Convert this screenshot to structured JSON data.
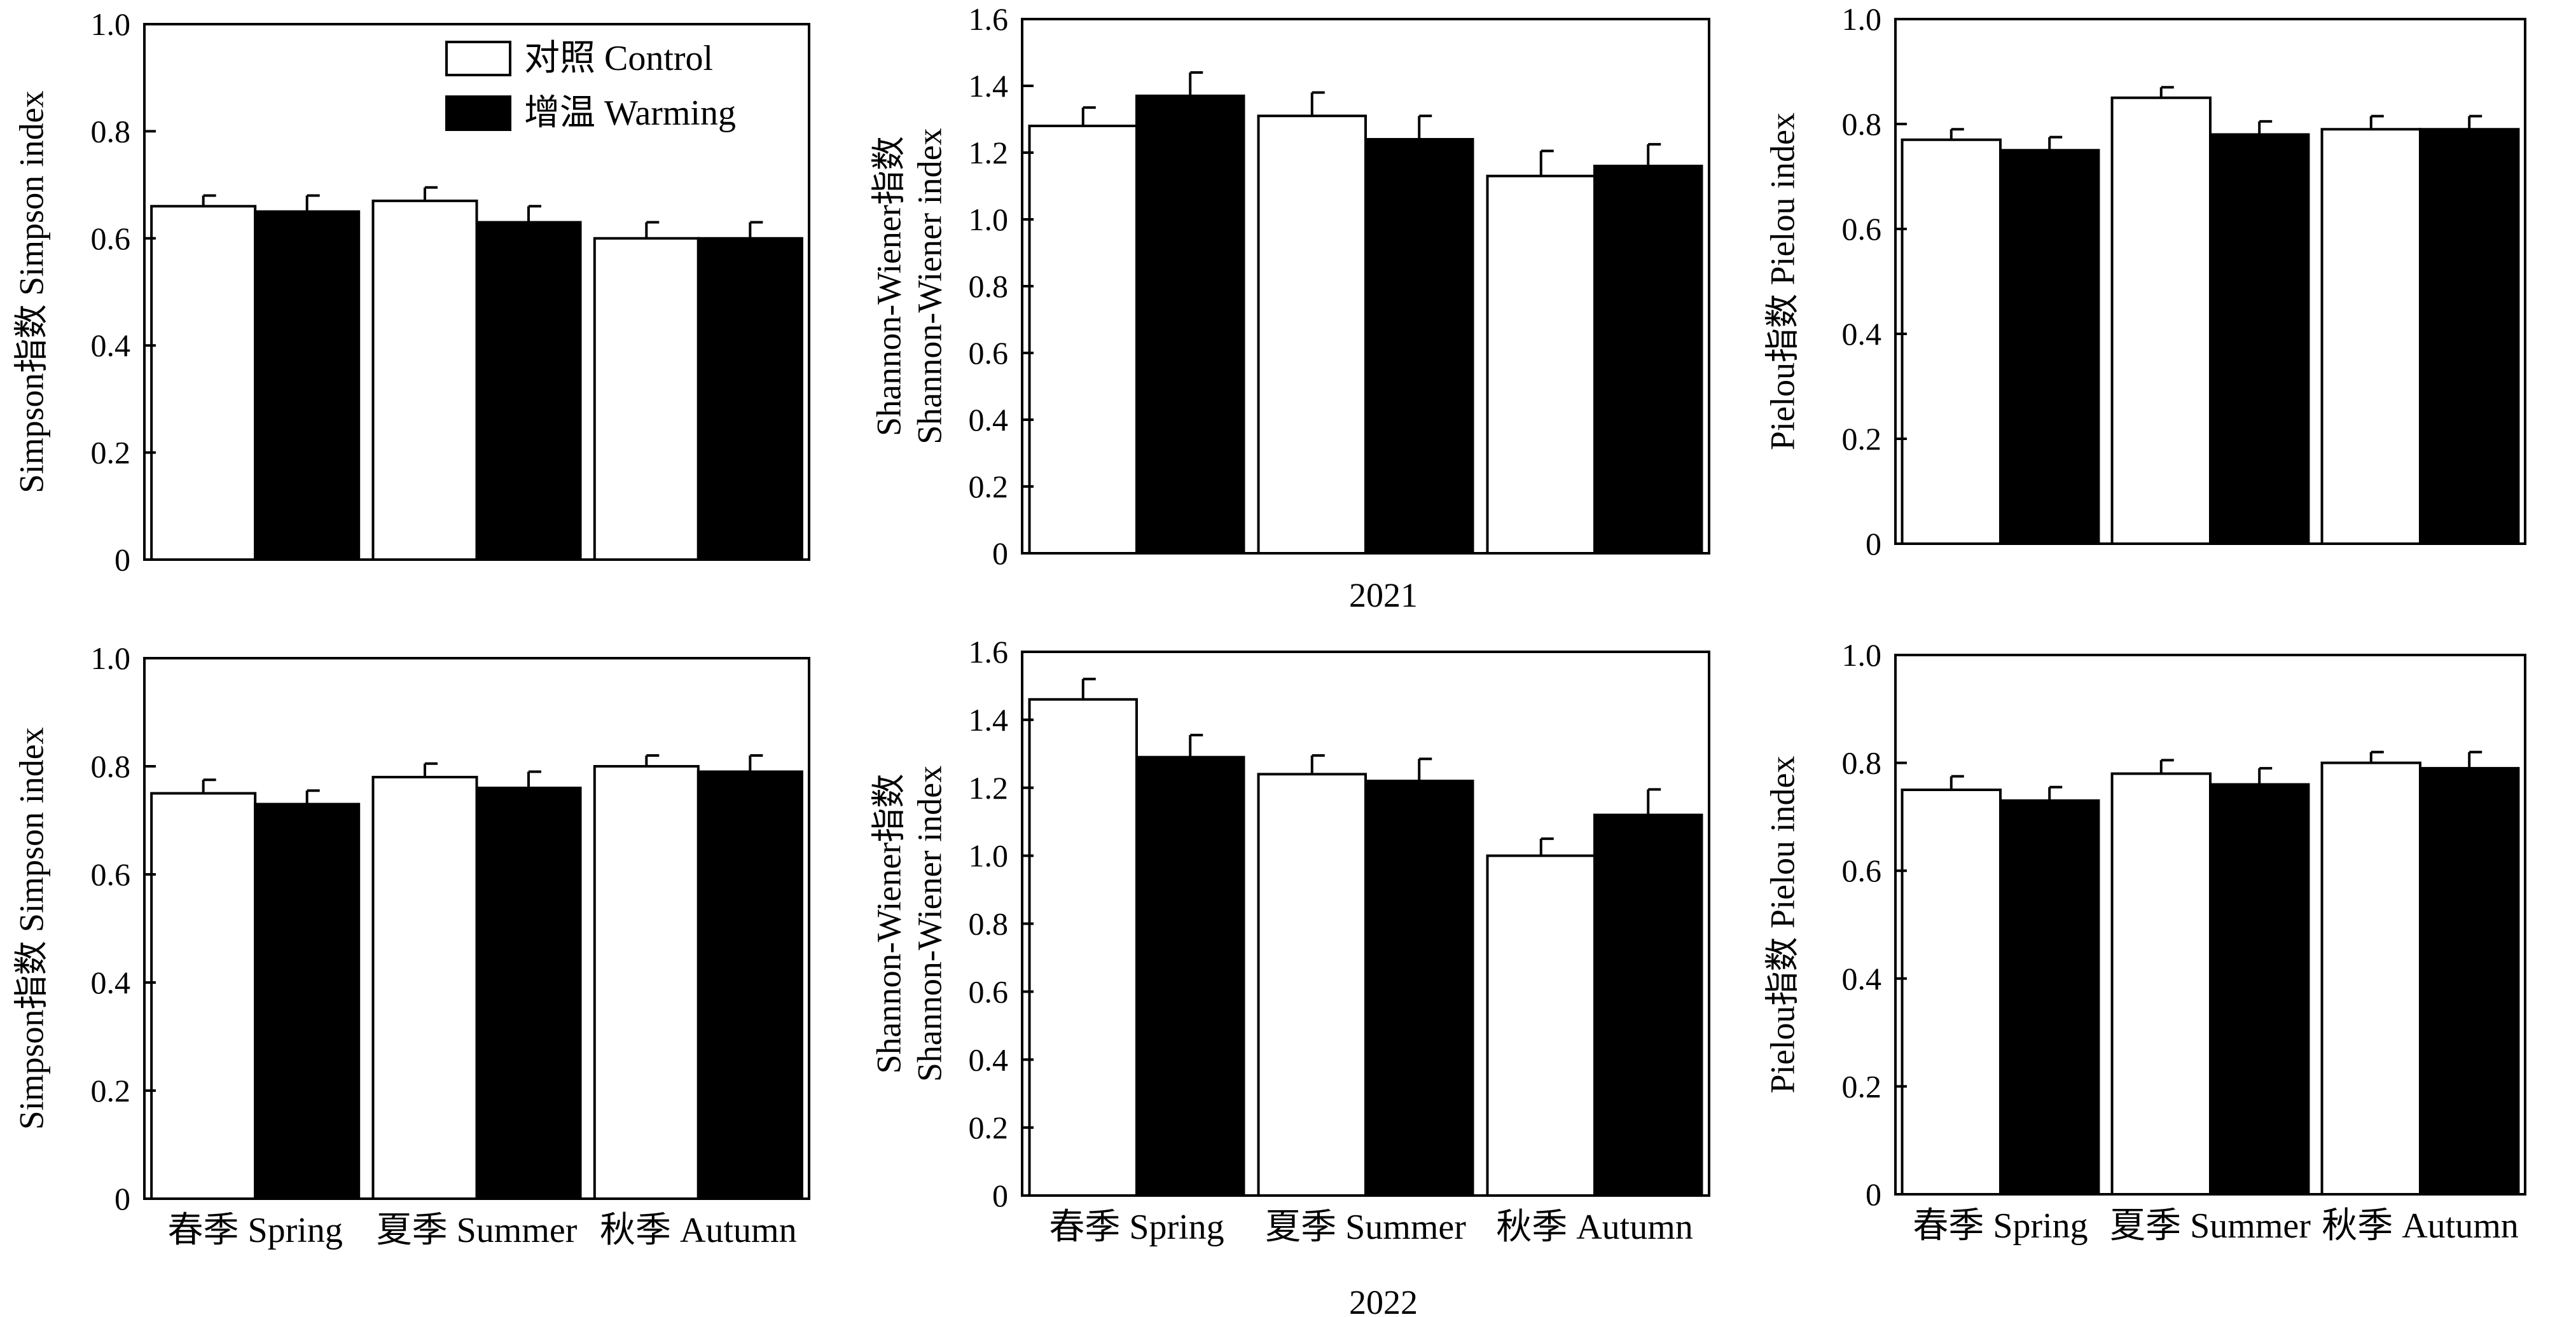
{
  "legend": [
    {
      "label": "对照 Control",
      "color": "#ffffff"
    },
    {
      "label": "增温 Warming",
      "color": "#000000"
    }
  ],
  "year_labels": [
    "2021",
    "2022"
  ],
  "chart_data": [
    {
      "type": "bar",
      "year": "2021",
      "categories": [
        "",
        "",
        ""
      ],
      "ylabel": [
        "Simpson指数 Simpson index"
      ],
      "ylim": [
        0,
        1.0
      ],
      "yticks": [
        "0",
        "0.2",
        "0.4",
        "0.6",
        "0.8",
        "1.0"
      ],
      "series": [
        {
          "name": "对照 Control",
          "values": [
            0.66,
            0.67,
            0.6
          ],
          "errors": [
            0.02,
            0.025,
            0.03
          ]
        },
        {
          "name": "增温 Warming",
          "values": [
            0.65,
            0.63,
            0.6
          ],
          "errors": [
            0.03,
            0.03,
            0.03
          ]
        }
      ]
    },
    {
      "type": "bar",
      "year": "2021",
      "categories": [
        "",
        "",
        ""
      ],
      "ylabel": [
        "Shannon-Wiener指数",
        "Shannon-Wiener index"
      ],
      "ylim": [
        0,
        1.6
      ],
      "yticks": [
        "0",
        "0.2",
        "0.4",
        "0.6",
        "0.8",
        "1.0",
        "1.2",
        "1.4",
        "1.6"
      ],
      "series": [
        {
          "name": "对照 Control",
          "values": [
            1.28,
            1.31,
            1.13
          ],
          "errors": [
            0.055,
            0.07,
            0.075
          ]
        },
        {
          "name": "增温 Warming",
          "values": [
            1.37,
            1.24,
            1.16
          ],
          "errors": [
            0.07,
            0.07,
            0.065
          ]
        }
      ]
    },
    {
      "type": "bar",
      "year": "2021",
      "categories": [
        "",
        "",
        ""
      ],
      "ylabel": [
        "Pielou指数 Pielou index"
      ],
      "ylim": [
        0,
        1.0
      ],
      "yticks": [
        "0",
        "0.2",
        "0.4",
        "0.6",
        "0.8",
        "1.0"
      ],
      "series": [
        {
          "name": "对照 Control",
          "values": [
            0.77,
            0.85,
            0.79
          ],
          "errors": [
            0.02,
            0.02,
            0.025
          ]
        },
        {
          "name": "增温 Warming",
          "values": [
            0.75,
            0.78,
            0.79
          ],
          "errors": [
            0.025,
            0.025,
            0.025
          ]
        }
      ]
    },
    {
      "type": "bar",
      "year": "2022",
      "categories": [
        "春季 Spring",
        "夏季 Summer",
        "秋季 Autumn"
      ],
      "ylabel": [
        "Simpson指数 Simpson index"
      ],
      "ylim": [
        0,
        1.0
      ],
      "yticks": [
        "0",
        "0.2",
        "0.4",
        "0.6",
        "0.8",
        "1.0"
      ],
      "series": [
        {
          "name": "对照 Control",
          "values": [
            0.75,
            0.78,
            0.8
          ],
          "errors": [
            0.025,
            0.025,
            0.02
          ]
        },
        {
          "name": "增温 Warming",
          "values": [
            0.73,
            0.76,
            0.79
          ],
          "errors": [
            0.025,
            0.03,
            0.03
          ]
        }
      ]
    },
    {
      "type": "bar",
      "year": "2022",
      "categories": [
        "春季 Spring",
        "夏季 Summer",
        "秋季 Autumn"
      ],
      "ylabel": [
        "Shannon-Wiener指数",
        "Shannon-Wiener index"
      ],
      "ylim": [
        0,
        1.6
      ],
      "yticks": [
        "0",
        "0.2",
        "0.4",
        "0.6",
        "0.8",
        "1.0",
        "1.2",
        "1.4",
        "1.6"
      ],
      "series": [
        {
          "name": "对照 Control",
          "values": [
            1.46,
            1.24,
            1.0
          ],
          "errors": [
            0.06,
            0.055,
            0.05
          ]
        },
        {
          "name": "增温 Warming",
          "values": [
            1.29,
            1.22,
            1.12
          ],
          "errors": [
            0.065,
            0.065,
            0.075
          ]
        }
      ]
    },
    {
      "type": "bar",
      "year": "2022",
      "categories": [
        "春季 Spring",
        "夏季 Summer",
        "秋季 Autumn"
      ],
      "ylabel": [
        "Pielou指数 Pielou index"
      ],
      "ylim": [
        0,
        1.0
      ],
      "yticks": [
        "0",
        "0.2",
        "0.4",
        "0.6",
        "0.8",
        "1.0"
      ],
      "series": [
        {
          "name": "对照 Control",
          "values": [
            0.75,
            0.78,
            0.8
          ],
          "errors": [
            0.025,
            0.025,
            0.02
          ]
        },
        {
          "name": "增温 Warming",
          "values": [
            0.73,
            0.76,
            0.79
          ],
          "errors": [
            0.025,
            0.03,
            0.03
          ]
        }
      ]
    }
  ]
}
